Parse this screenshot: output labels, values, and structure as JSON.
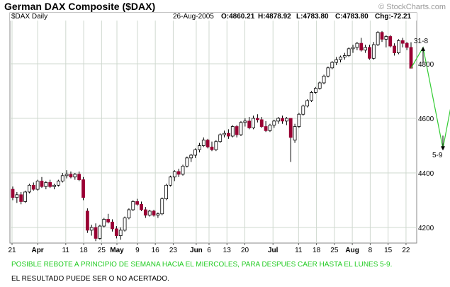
{
  "header": {
    "title": "German DAX Composite ($DAX)",
    "credit": "© StockCharts.com",
    "symbol_label": "$DAX Daily",
    "date": "26-Aug-2005",
    "open": "O:4860.21",
    "high": "H:4878.92",
    "low": "L:4783.80",
    "close": "C:4783.80",
    "change": "Chg:-72.21"
  },
  "annotations": {
    "projection_labels": [
      "31-8",
      "5-9"
    ],
    "note_line1": "POSIBLE REBOTE A PRINCIPIO DE SEMANA HACIA EL MIERCOLES, PARA DESPUES CAER HASTA EL LUNES 5-9.",
    "note_line2": "EL RESULTADO PUEDE SER O NO ACERTADO."
  },
  "colors": {
    "up_candle": "#ffffff",
    "down_candle": "#990033",
    "projection_line": "#33cc33",
    "grid": "#cfd8cf"
  },
  "chart_data": {
    "type": "candlestick",
    "title": "German DAX Composite ($DAX)",
    "ylim": [
      4150,
      4950
    ],
    "y_ticks": [
      4200,
      4400,
      4600,
      4800
    ],
    "x_ticks": [
      {
        "label": "21",
        "bold": false,
        "day": 0
      },
      {
        "label": "Apr",
        "bold": true,
        "day": 10
      },
      {
        "label": "11",
        "bold": false,
        "day": 21
      },
      {
        "label": "18",
        "bold": false,
        "day": 28
      },
      {
        "label": "25",
        "bold": false,
        "day": 35
      },
      {
        "label": "May",
        "bold": true,
        "day": 41
      },
      {
        "label": "9",
        "bold": false,
        "day": 49
      },
      {
        "label": "16",
        "bold": false,
        "day": 56
      },
      {
        "label": "23",
        "bold": false,
        "day": 63
      },
      {
        "label": "Jun",
        "bold": true,
        "day": 72
      },
      {
        "label": "6",
        "bold": false,
        "day": 77
      },
      {
        "label": "13",
        "bold": false,
        "day": 84
      },
      {
        "label": "20",
        "bold": false,
        "day": 91
      },
      {
        "label": "Jul",
        "bold": true,
        "day": 102
      },
      {
        "label": "11",
        "bold": false,
        "day": 112
      },
      {
        "label": "18",
        "bold": false,
        "day": 119
      },
      {
        "label": "25",
        "bold": false,
        "day": 126
      },
      {
        "label": "Aug",
        "bold": true,
        "day": 133
      },
      {
        "label": "8",
        "bold": false,
        "day": 140
      },
      {
        "label": "15",
        "bold": false,
        "day": 147
      },
      {
        "label": "22",
        "bold": false,
        "day": 154
      }
    ],
    "candles": [
      {
        "o": 4340,
        "h": 4350,
        "l": 4300,
        "c": 4310
      },
      {
        "o": 4310,
        "h": 4330,
        "l": 4290,
        "c": 4320
      },
      {
        "o": 4320,
        "h": 4330,
        "l": 4285,
        "c": 4295
      },
      {
        "o": 4295,
        "h": 4335,
        "l": 4290,
        "c": 4330
      },
      {
        "o": 4330,
        "h": 4360,
        "l": 4325,
        "c": 4355
      },
      {
        "o": 4355,
        "h": 4365,
        "l": 4335,
        "c": 4340
      },
      {
        "o": 4340,
        "h": 4375,
        "l": 4335,
        "c": 4370
      },
      {
        "o": 4370,
        "h": 4385,
        "l": 4345,
        "c": 4350
      },
      {
        "o": 4350,
        "h": 4370,
        "l": 4340,
        "c": 4365
      },
      {
        "o": 4365,
        "h": 4375,
        "l": 4345,
        "c": 4350
      },
      {
        "o": 4350,
        "h": 4360,
        "l": 4340,
        "c": 4355
      },
      {
        "o": 4355,
        "h": 4375,
        "l": 4350,
        "c": 4370
      },
      {
        "o": 4370,
        "h": 4400,
        "l": 4365,
        "c": 4390
      },
      {
        "o": 4390,
        "h": 4410,
        "l": 4380,
        "c": 4395
      },
      {
        "o": 4395,
        "h": 4405,
        "l": 4380,
        "c": 4385
      },
      {
        "o": 4385,
        "h": 4400,
        "l": 4375,
        "c": 4395
      },
      {
        "o": 4395,
        "h": 4405,
        "l": 4370,
        "c": 4375
      },
      {
        "o": 4375,
        "h": 4385,
        "l": 4300,
        "c": 4310
      },
      {
        "o": 4260,
        "h": 4270,
        "l": 4180,
        "c": 4190
      },
      {
        "o": 4190,
        "h": 4210,
        "l": 4170,
        "c": 4200
      },
      {
        "o": 4200,
        "h": 4215,
        "l": 4150,
        "c": 4160
      },
      {
        "o": 4160,
        "h": 4210,
        "l": 4155,
        "c": 4205
      },
      {
        "o": 4205,
        "h": 4235,
        "l": 4200,
        "c": 4230
      },
      {
        "o": 4230,
        "h": 4250,
        "l": 4215,
        "c": 4220
      },
      {
        "o": 4220,
        "h": 4230,
        "l": 4185,
        "c": 4195
      },
      {
        "o": 4195,
        "h": 4205,
        "l": 4160,
        "c": 4170
      },
      {
        "o": 4170,
        "h": 4200,
        "l": 4155,
        "c": 4190
      },
      {
        "o": 4190,
        "h": 4240,
        "l": 4185,
        "c": 4235
      },
      {
        "o": 4235,
        "h": 4270,
        "l": 4230,
        "c": 4265
      },
      {
        "o": 4265,
        "h": 4300,
        "l": 4260,
        "c": 4295
      },
      {
        "o": 4295,
        "h": 4305,
        "l": 4280,
        "c": 4285
      },
      {
        "o": 4285,
        "h": 4295,
        "l": 4260,
        "c": 4265
      },
      {
        "o": 4265,
        "h": 4275,
        "l": 4235,
        "c": 4245
      },
      {
        "o": 4245,
        "h": 4265,
        "l": 4240,
        "c": 4260
      },
      {
        "o": 4260,
        "h": 4265,
        "l": 4240,
        "c": 4245
      },
      {
        "o": 4245,
        "h": 4255,
        "l": 4235,
        "c": 4250
      },
      {
        "o": 4250,
        "h": 4310,
        "l": 4245,
        "c": 4305
      },
      {
        "o": 4305,
        "h": 4360,
        "l": 4300,
        "c": 4355
      },
      {
        "o": 4355,
        "h": 4390,
        "l": 4350,
        "c": 4385
      },
      {
        "o": 4385,
        "h": 4410,
        "l": 4370,
        "c": 4405
      },
      {
        "o": 4405,
        "h": 4415,
        "l": 4385,
        "c": 4395
      },
      {
        "o": 4395,
        "h": 4430,
        "l": 4390,
        "c": 4425
      },
      {
        "o": 4425,
        "h": 4460,
        "l": 4420,
        "c": 4455
      },
      {
        "o": 4455,
        "h": 4470,
        "l": 4440,
        "c": 4465
      },
      {
        "o": 4465,
        "h": 4490,
        "l": 4455,
        "c": 4485
      },
      {
        "o": 4485,
        "h": 4510,
        "l": 4475,
        "c": 4500
      },
      {
        "o": 4500,
        "h": 4530,
        "l": 4495,
        "c": 4520
      },
      {
        "o": 4520,
        "h": 4525,
        "l": 4490,
        "c": 4495
      },
      {
        "o": 4495,
        "h": 4515,
        "l": 4480,
        "c": 4485
      },
      {
        "o": 4485,
        "h": 4520,
        "l": 4480,
        "c": 4515
      },
      {
        "o": 4515,
        "h": 4545,
        "l": 4510,
        "c": 4540
      },
      {
        "o": 4540,
        "h": 4555,
        "l": 4530,
        "c": 4545
      },
      {
        "o": 4545,
        "h": 4560,
        "l": 4525,
        "c": 4535
      },
      {
        "o": 4535,
        "h": 4575,
        "l": 4530,
        "c": 4570
      },
      {
        "o": 4570,
        "h": 4575,
        "l": 4530,
        "c": 4540
      },
      {
        "o": 4540,
        "h": 4590,
        "l": 4535,
        "c": 4585
      },
      {
        "o": 4585,
        "h": 4600,
        "l": 4570,
        "c": 4590
      },
      {
        "o": 4590,
        "h": 4605,
        "l": 4560,
        "c": 4565
      },
      {
        "o": 4565,
        "h": 4610,
        "l": 4560,
        "c": 4600
      },
      {
        "o": 4600,
        "h": 4615,
        "l": 4585,
        "c": 4595
      },
      {
        "o": 4595,
        "h": 4605,
        "l": 4565,
        "c": 4570
      },
      {
        "o": 4570,
        "h": 4590,
        "l": 4550,
        "c": 4555
      },
      {
        "o": 4555,
        "h": 4580,
        "l": 4550,
        "c": 4575
      },
      {
        "o": 4575,
        "h": 4595,
        "l": 4565,
        "c": 4590
      },
      {
        "o": 4590,
        "h": 4605,
        "l": 4580,
        "c": 4600
      },
      {
        "o": 4600,
        "h": 4610,
        "l": 4580,
        "c": 4590
      },
      {
        "o": 4590,
        "h": 4605,
        "l": 4575,
        "c": 4600
      },
      {
        "o": 4600,
        "h": 4600,
        "l": 4440,
        "c": 4530
      },
      {
        "o": 4520,
        "h": 4580,
        "l": 4510,
        "c": 4570
      },
      {
        "o": 4570,
        "h": 4620,
        "l": 4565,
        "c": 4615
      },
      {
        "o": 4615,
        "h": 4650,
        "l": 4610,
        "c": 4645
      },
      {
        "o": 4645,
        "h": 4670,
        "l": 4640,
        "c": 4665
      },
      {
        "o": 4665,
        "h": 4700,
        "l": 4660,
        "c": 4695
      },
      {
        "o": 4695,
        "h": 4715,
        "l": 4690,
        "c": 4710
      },
      {
        "o": 4710,
        "h": 4735,
        "l": 4705,
        "c": 4730
      },
      {
        "o": 4730,
        "h": 4760,
        "l": 4725,
        "c": 4755
      },
      {
        "o": 4755,
        "h": 4790,
        "l": 4750,
        "c": 4785
      },
      {
        "o": 4785,
        "h": 4810,
        "l": 4780,
        "c": 4805
      },
      {
        "o": 4805,
        "h": 4825,
        "l": 4795,
        "c": 4815
      },
      {
        "o": 4815,
        "h": 4830,
        "l": 4805,
        "c": 4825
      },
      {
        "o": 4825,
        "h": 4840,
        "l": 4815,
        "c": 4830
      },
      {
        "o": 4830,
        "h": 4860,
        "l": 4825,
        "c": 4855
      },
      {
        "o": 4855,
        "h": 4870,
        "l": 4840,
        "c": 4860
      },
      {
        "o": 4860,
        "h": 4880,
        "l": 4850,
        "c": 4875
      },
      {
        "o": 4875,
        "h": 4895,
        "l": 4845,
        "c": 4850
      },
      {
        "o": 4850,
        "h": 4870,
        "l": 4840,
        "c": 4860
      },
      {
        "o": 4860,
        "h": 4870,
        "l": 4815,
        "c": 4820
      },
      {
        "o": 4820,
        "h": 4880,
        "l": 4815,
        "c": 4870
      },
      {
        "o": 4870,
        "h": 4920,
        "l": 4865,
        "c": 4915
      },
      {
        "o": 4915,
        "h": 4920,
        "l": 4880,
        "c": 4890
      },
      {
        "o": 4890,
        "h": 4905,
        "l": 4860,
        "c": 4900
      },
      {
        "o": 4900,
        "h": 4905,
        "l": 4860,
        "c": 4865
      },
      {
        "o": 4865,
        "h": 4875,
        "l": 4830,
        "c": 4840
      },
      {
        "o": 4840,
        "h": 4890,
        "l": 4835,
        "c": 4885
      },
      {
        "o": 4885,
        "h": 4895,
        "l": 4860,
        "c": 4875
      },
      {
        "o": 4875,
        "h": 4880,
        "l": 4850,
        "c": 4860
      },
      {
        "o": 4860,
        "h": 4878.92,
        "l": 4783.8,
        "c": 4783.8
      }
    ],
    "projection": [
      {
        "point": "start",
        "value": 4783.8
      },
      {
        "point": "31-8",
        "value": 4860
      },
      {
        "point": "5-9",
        "value": 4490
      },
      {
        "point": "end",
        "value": 4640
      }
    ]
  }
}
